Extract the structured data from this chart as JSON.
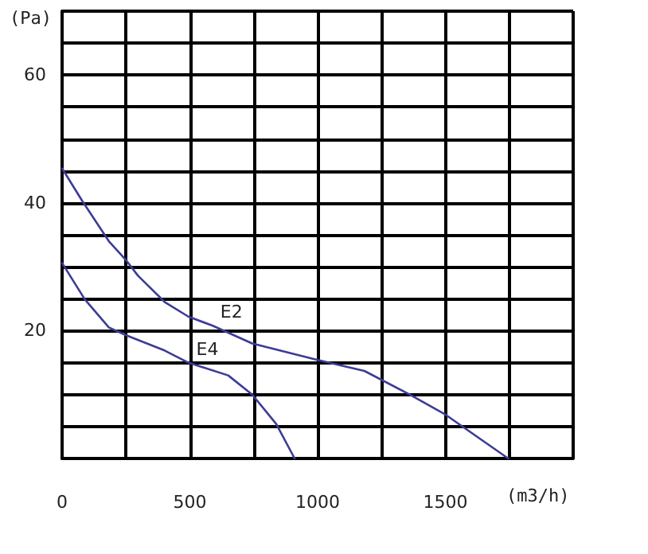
{
  "chart_data": {
    "type": "line",
    "xlabel": "(m3/h)",
    "ylabel": "(Pa)",
    "xlim": [
      0,
      2000
    ],
    "ylim": [
      0,
      70
    ],
    "xticks": [
      0,
      {
        "value": 250,
        "label": null
      },
      500,
      {
        "value": 750,
        "label": null
      },
      1000,
      {
        "value": 1250,
        "label": null
      },
      1500,
      {
        "value": 1750,
        "label": null
      },
      {
        "value": 2000,
        "label": null
      }
    ],
    "yticks": [
      {
        "value": 0,
        "label": null
      },
      {
        "value": 5,
        "label": null
      },
      {
        "value": 10,
        "label": null
      },
      {
        "value": 15,
        "label": null
      },
      20,
      {
        "value": 25,
        "label": null
      },
      {
        "value": 30,
        "label": null
      },
      {
        "value": 35,
        "label": null
      },
      40,
      {
        "value": 45,
        "label": null
      },
      {
        "value": 50,
        "label": null
      },
      {
        "value": 55,
        "label": null
      },
      60,
      {
        "value": 65,
        "label": null
      },
      {
        "value": 70,
        "label": null
      }
    ],
    "grid": true,
    "legend": false,
    "marker": "none",
    "line_style": "solid",
    "series": [
      {
        "name": "E2",
        "color": "#3c3c96",
        "x": [
          0,
          79,
          183,
          249,
          297,
          401,
          494,
          588,
          744,
          1000,
          1183,
          1360,
          1495,
          1746
        ],
        "values": [
          45.4,
          40.3,
          34,
          31.1,
          28.6,
          24.5,
          22.2,
          20.8,
          18,
          15.4,
          13.7,
          10,
          7,
          0
        ]
      },
      {
        "name": "E4",
        "color": "#3c3c96",
        "x": [
          0,
          89,
          183,
          249,
          401,
          494,
          650,
          744,
          838,
          910
        ],
        "values": [
          30.6,
          24.9,
          20.5,
          19.3,
          16.9,
          15,
          13,
          10,
          5.4,
          0
        ]
      }
    ]
  }
}
